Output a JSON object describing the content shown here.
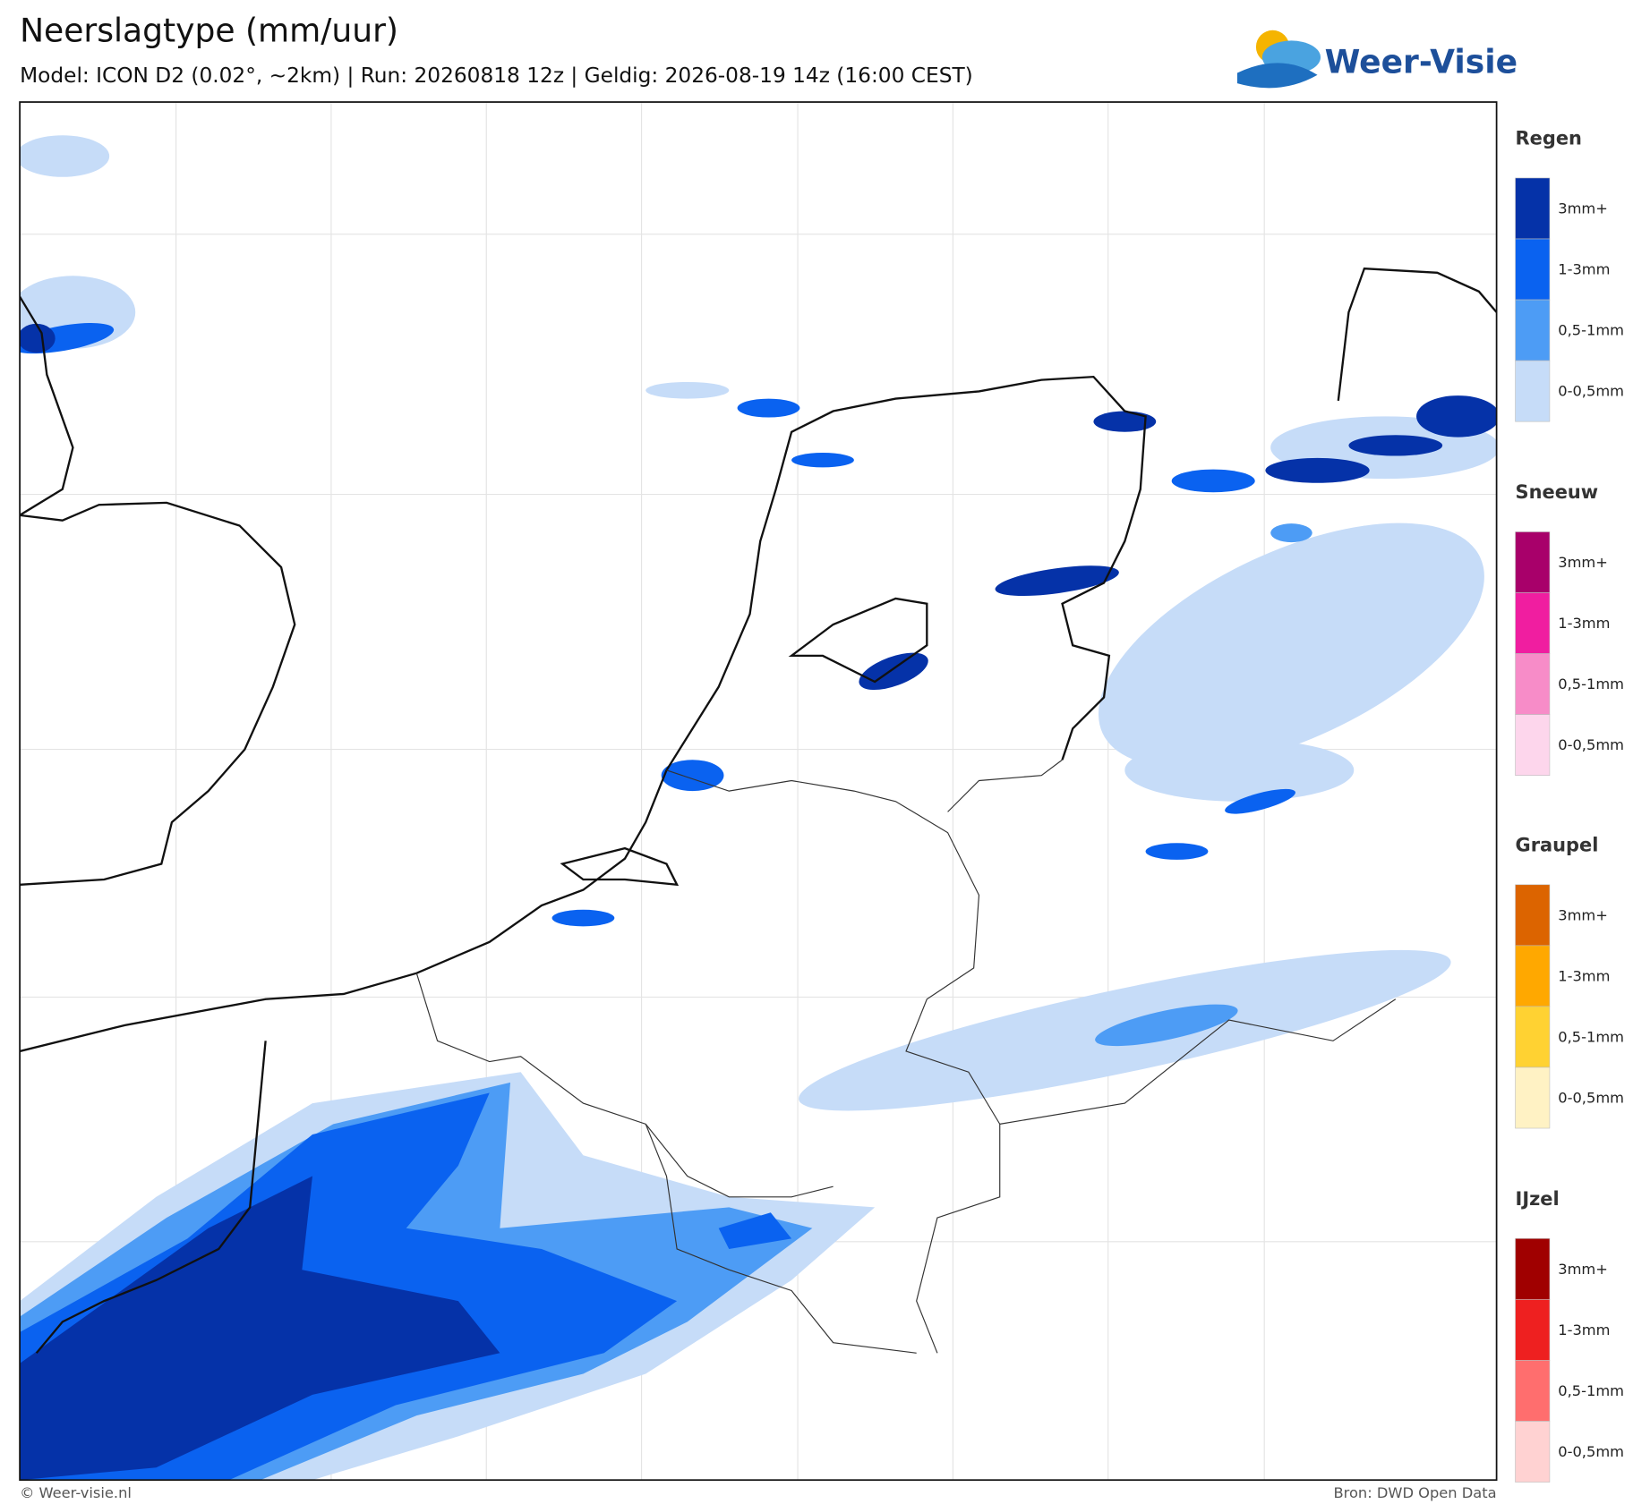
{
  "header": {
    "title": "Neerslagtype (mm/uur)",
    "subtitle": "Model: ICON D2 (0.02°, ~2km)  |  Run: 20260818 12z  |  Geldig: 2026-08-19 14z (16:00 CEST)",
    "logo": "Weer-Visie"
  },
  "legend": {
    "groups": [
      {
        "title": "Regen",
        "items": [
          {
            "label": "3mm+",
            "color": "#0532a8"
          },
          {
            "label": "1-3mm",
            "color": "#0a62f0"
          },
          {
            "label": "0,5-1mm",
            "color": "#4d9cf5"
          },
          {
            "label": "0-0,5mm",
            "color": "#c6dcf8"
          }
        ]
      },
      {
        "title": "Sneeuw",
        "items": [
          {
            "label": "3mm+",
            "color": "#a8006a"
          },
          {
            "label": "1-3mm",
            "color": "#f01ea0"
          },
          {
            "label": "0,5-1mm",
            "color": "#f78cc8"
          },
          {
            "label": "0-0,5mm",
            "color": "#fdd6ec"
          }
        ]
      },
      {
        "title": "Graupel",
        "items": [
          {
            "label": "3mm+",
            "color": "#dc6400"
          },
          {
            "label": "1-3mm",
            "color": "#ffa800"
          },
          {
            "label": "0,5-1mm",
            "color": "#ffd232"
          },
          {
            "label": "0-0,5mm",
            "color": "#fff2c4"
          }
        ]
      },
      {
        "title": "IJzel",
        "items": [
          {
            "label": "3mm+",
            "color": "#a00000"
          },
          {
            "label": "1-3mm",
            "color": "#ee2020"
          },
          {
            "label": "0,5-1mm",
            "color": "#ff6e6e"
          },
          {
            "label": "0-0,5mm",
            "color": "#ffd2d2"
          }
        ]
      }
    ]
  },
  "footer": {
    "left": "© Weer-visie.nl",
    "right": "Bron: DWD Open Data"
  }
}
